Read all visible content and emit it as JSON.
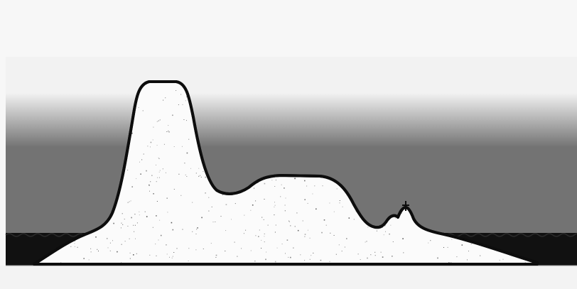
{
  "image": {
    "kind": "silhouette-illustration",
    "palette": {
      "background": "#f7f7f7",
      "sky_dark": "#737373",
      "sky_light": "#f2f2f2",
      "sea": "#111111",
      "landmass": "#fbfbfb",
      "outline": "#0d0d0d",
      "speckle": "#3a3a3a",
      "shore": "#f3f3f3"
    },
    "speckle_count": 900
  }
}
